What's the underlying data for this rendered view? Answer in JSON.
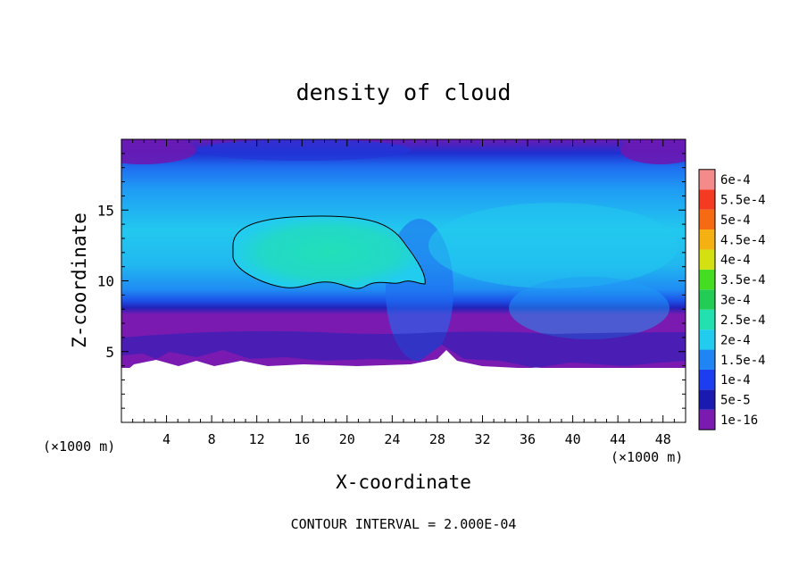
{
  "chart_data": {
    "type": "heatmap",
    "title": "density of cloud",
    "xlabel": "X-coordinate",
    "ylabel": "Z-coordinate",
    "x_unit": "(×1000 m)",
    "x_unit_right": "(×1000 m)",
    "footer": "CONTOUR INTERVAL = 2.000E-04",
    "xlim": [
      0,
      50
    ],
    "ylim": [
      0,
      20
    ],
    "x_ticks": [
      4,
      8,
      12,
      16,
      20,
      24,
      28,
      32,
      36,
      40,
      44,
      48
    ],
    "x_tick_labels": [
      "4",
      "8",
      "12",
      "16",
      "20",
      "24",
      "28",
      "32",
      "36",
      "40",
      "44",
      "48"
    ],
    "y_ticks": [
      5,
      10,
      15
    ],
    "y_tick_labels": [
      "5",
      "10",
      "15"
    ],
    "colorbar": {
      "levels": [
        "1e-16",
        "5e-5",
        "1e-4",
        "1.5e-4",
        "2e-4",
        "2.5e-4",
        "3e-4",
        "3.5e-4",
        "4e-4",
        "4.5e-4",
        "5e-4",
        "5.5e-4",
        "6e-4"
      ],
      "colors": [
        "#7a1ab0",
        "#1a1ab0",
        "#1c3ef0",
        "#1f85f5",
        "#22ccee",
        "#22e0b0",
        "#22cc55",
        "#44dd22",
        "#d4e012",
        "#f5b012",
        "#f56a12",
        "#f53a22",
        "#f58a8a"
      ]
    },
    "contour_level": 0.0002,
    "contour_region": {
      "x_range": [
        10,
        27
      ],
      "z_range": [
        9.5,
        14.6
      ]
    },
    "cloud_base_z": 4.2,
    "cloud_top_z": 20
  }
}
